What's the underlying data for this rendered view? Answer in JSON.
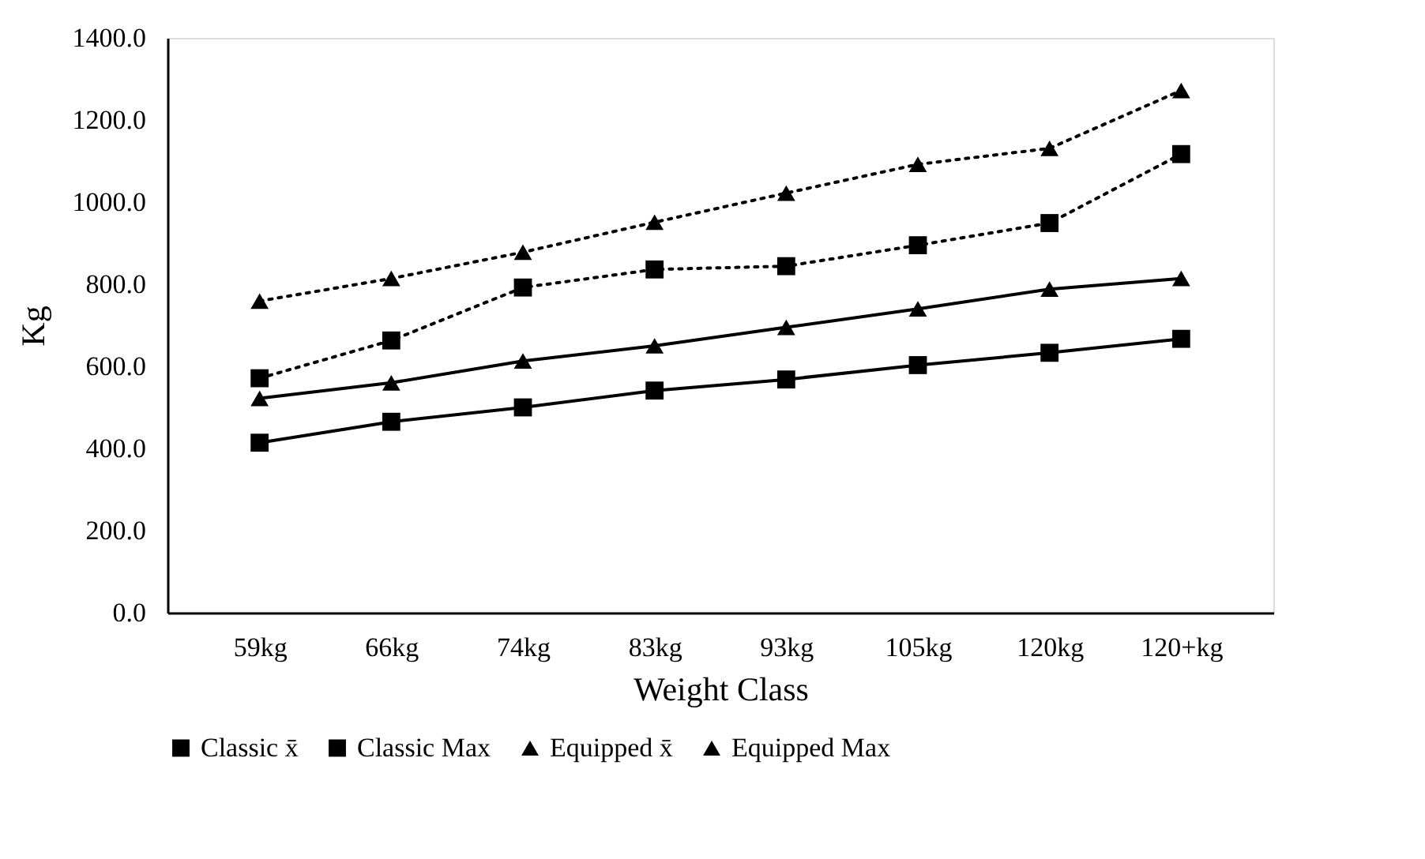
{
  "chart_data": {
    "type": "line",
    "xlabel": "Weight Class",
    "ylabel": "Kg",
    "categories": [
      "59kg",
      "66kg",
      "74kg",
      "83kg",
      "93kg",
      "105kg",
      "120kg",
      "120+kg"
    ],
    "series": [
      {
        "name": "Classic x̄",
        "color": "#000000",
        "line_style": "solid",
        "marker": "square",
        "values": [
          414,
          465,
          500,
          541,
          568,
          603,
          633,
          667
        ]
      },
      {
        "name": "Classic Max",
        "color": "#000000",
        "line_style": "dotted",
        "marker": "square",
        "values": [
          571,
          663,
          792,
          836,
          844,
          895,
          949,
          1117
        ]
      },
      {
        "name": "Equipped x̄",
        "color": "#000000",
        "line_style": "solid",
        "marker": "triangle",
        "values": [
          522,
          560,
          613,
          650,
          695,
          740,
          788,
          814
        ]
      },
      {
        "name": "Equipped Max",
        "color": "#000000",
        "line_style": "dotted",
        "marker": "triangle",
        "values": [
          759,
          814,
          878,
          951,
          1022,
          1092,
          1131,
          1272
        ]
      }
    ],
    "ylim": [
      0,
      1400
    ],
    "yticks": [
      {
        "value": 0,
        "label": "0.0"
      },
      {
        "value": 200,
        "label": "200.0"
      },
      {
        "value": 400,
        "label": "400.0"
      },
      {
        "value": 600,
        "label": "600.0"
      },
      {
        "value": 800,
        "label": "800.0"
      },
      {
        "value": 1000,
        "label": "1000.0"
      },
      {
        "value": 1200,
        "label": "1200.0"
      },
      {
        "value": 1400,
        "label": "1400.0"
      }
    ],
    "grid": false,
    "legend": "bottom"
  }
}
